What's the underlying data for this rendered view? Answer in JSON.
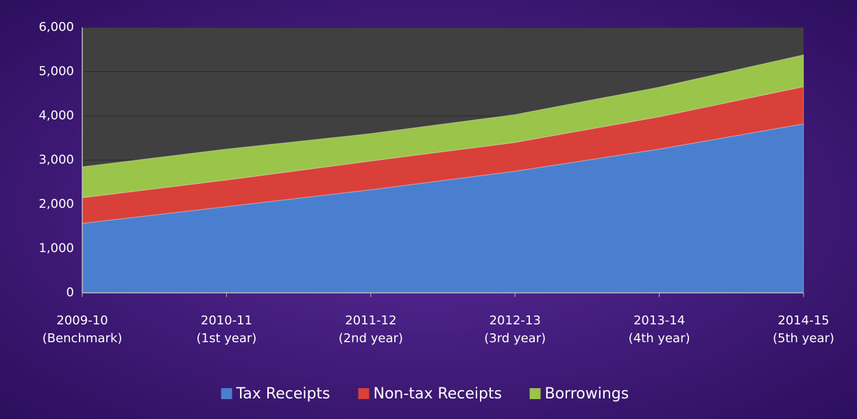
{
  "chart_data": {
    "type": "stacked-area",
    "categories": [
      "2009-10\n(Benchmark)",
      "2010-11\n(1st year)",
      "2011-12\n(2nd year)",
      "2012-13\n(3rd year)",
      "2013-14\n(4th year)",
      "2014-15\n(5th year)"
    ],
    "series": [
      {
        "name": "Tax Receipts",
        "color": "#4a7fcf",
        "values": [
          1570,
          1950,
          2330,
          2750,
          3250,
          3820
        ]
      },
      {
        "name": "Non-tax Receipts",
        "color": "#d9403a",
        "values": [
          580,
          600,
          650,
          650,
          730,
          840
        ]
      },
      {
        "name": "Borrowings",
        "color": "#9bc44a",
        "values": [
          700,
          700,
          620,
          630,
          670,
          720
        ]
      }
    ],
    "ylim": [
      0,
      6000
    ],
    "yticks": [
      0,
      {
        "value": 1000,
        "label": "1,000"
      },
      {
        "value": 2000,
        "label": "2,000"
      },
      {
        "value": 3000,
        "label": "3,000"
      },
      {
        "value": 4000,
        "label": "4,000"
      },
      {
        "value": 5000,
        "label": "5,000"
      },
      {
        "value": 6000,
        "label": "6,000"
      }
    ],
    "grid": true,
    "legend": "bottom"
  }
}
